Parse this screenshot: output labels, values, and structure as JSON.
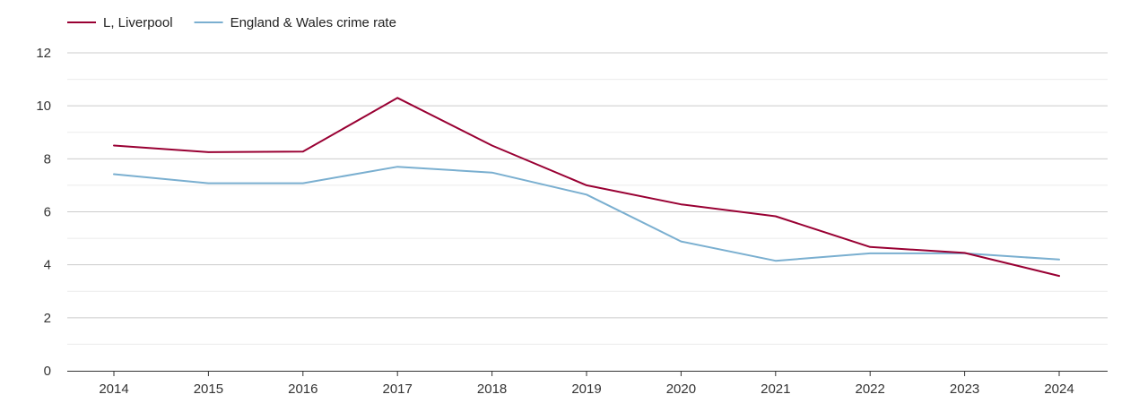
{
  "chart_data": {
    "type": "line",
    "title": "",
    "xlabel": "",
    "ylabel": "",
    "categories": [
      "2014",
      "2015",
      "2016",
      "2017",
      "2018",
      "2019",
      "2020",
      "2021",
      "2022",
      "2023",
      "2024"
    ],
    "ylim": [
      0,
      12
    ],
    "yticks": [
      0,
      2,
      4,
      6,
      8,
      10,
      12
    ],
    "yticks_labels": [
      "0",
      "2",
      "4",
      "6",
      "8",
      "10",
      "12"
    ],
    "minor_gridlines": [
      1,
      3,
      5,
      7,
      9,
      11
    ],
    "grid": true,
    "legend_position": "top-left",
    "series": [
      {
        "name": "L, Liverpool",
        "color": "#990033",
        "values": [
          8.5,
          8.25,
          8.27,
          10.3,
          8.5,
          7.0,
          6.28,
          5.83,
          4.67,
          4.45,
          3.58
        ]
      },
      {
        "name": "England & Wales crime rate",
        "color": "#7aafd0",
        "values": [
          7.42,
          7.08,
          7.08,
          7.7,
          7.48,
          6.65,
          4.88,
          4.15,
          4.43,
          4.43,
          4.2
        ]
      }
    ]
  }
}
